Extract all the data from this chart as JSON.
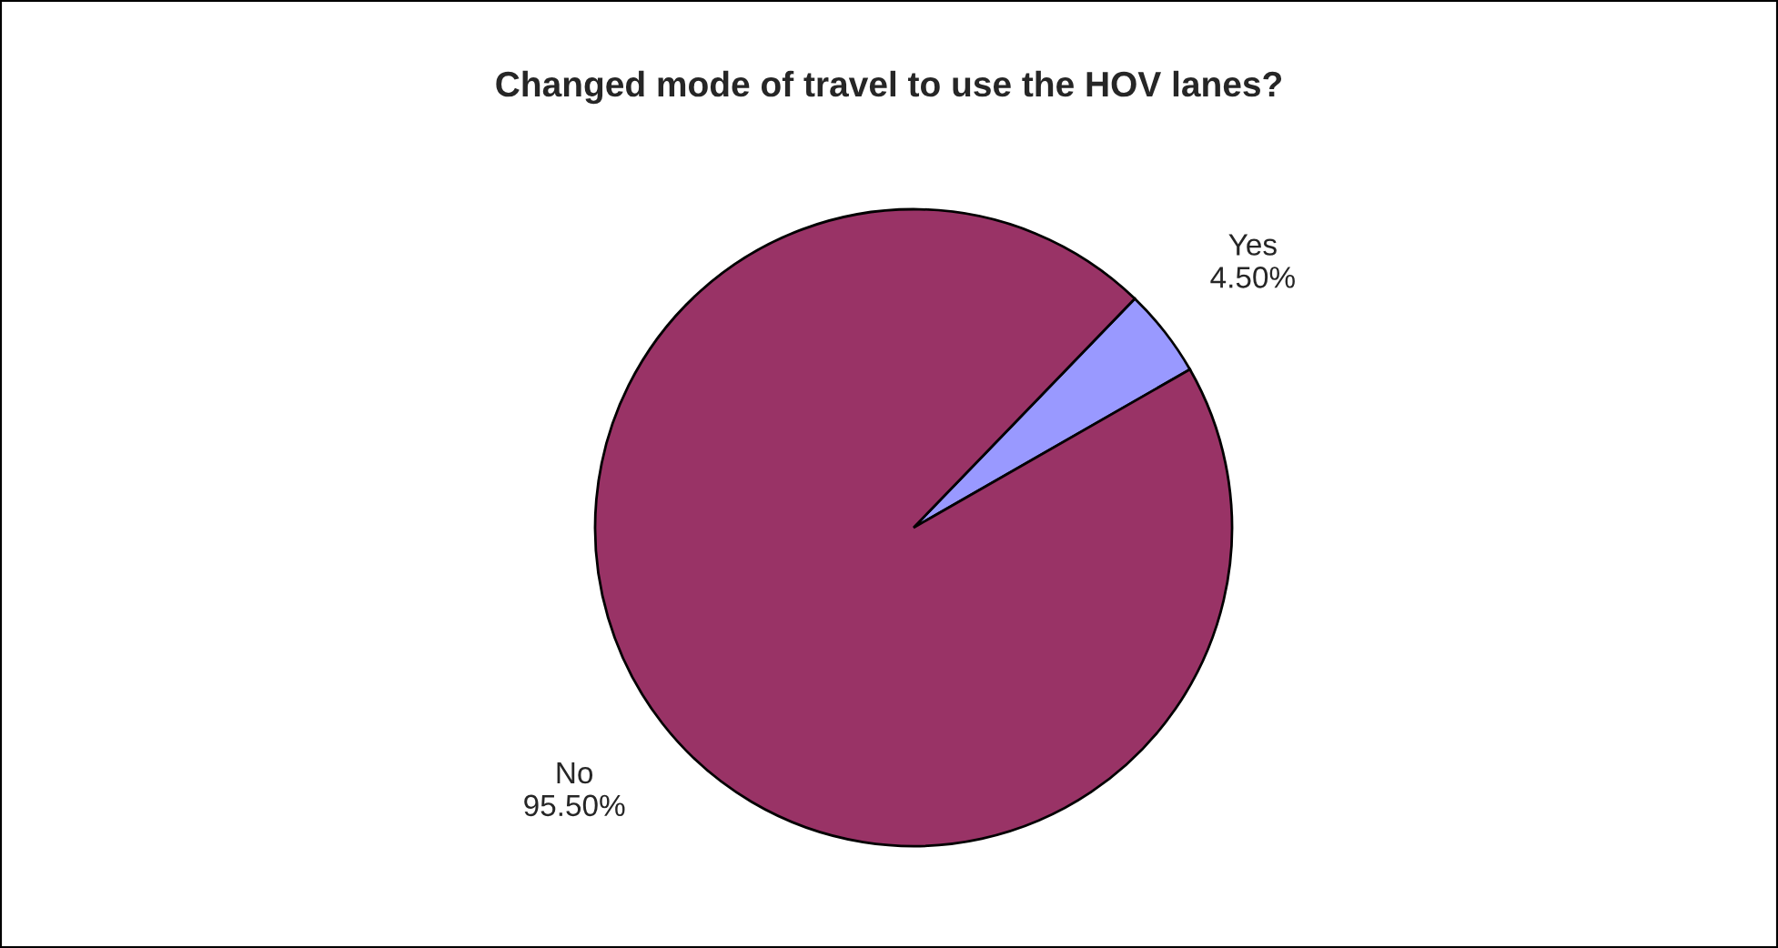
{
  "chart_data": {
    "type": "pie",
    "title": "Changed mode of travel to use the HOV lanes?",
    "categories": [
      "Yes",
      "No"
    ],
    "values": [
      4.5,
      95.5
    ],
    "colors": [
      "#9999ff",
      "#993366"
    ],
    "value_labels": [
      "4.50%",
      "95.50%"
    ],
    "legend": false
  }
}
